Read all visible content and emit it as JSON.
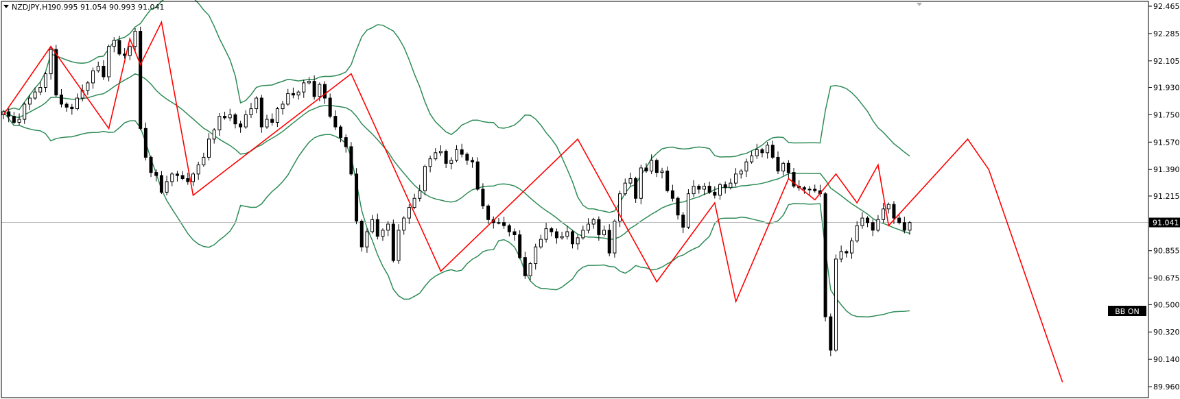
{
  "header": {
    "symbol_label": "NZDJPY,H1",
    "ohlc_values": "90.995 91.054 90.993 91.041"
  },
  "bb_button": {
    "label": "BB ON"
  },
  "price_axis": {
    "labels": [
      "92.465",
      "92.285",
      "92.105",
      "91.930",
      "91.750",
      "91.570",
      "91.390",
      "91.215",
      "91.041",
      "90.855",
      "90.675",
      "90.500",
      "90.320",
      "90.140",
      "89.960"
    ],
    "current_price_label": "91.041"
  },
  "colors": {
    "background": "#ffffff",
    "frame": "#000000",
    "candle": "#000000",
    "bollinger": "#2e8b57",
    "zigzag": "#ff0000",
    "price_line": "#c0c0c0",
    "price_tag_bg": "#000000",
    "price_tag_text": "#ffffff"
  },
  "chart_data": {
    "type": "candlestick",
    "symbol": "NZDJPY",
    "timeframe": "H1",
    "ylim": [
      89.96,
      92.465
    ],
    "current_price": 91.041,
    "closes": [
      91.77,
      91.74,
      91.7,
      91.72,
      91.82,
      91.86,
      91.9,
      91.93,
      92.02,
      92.18,
      91.88,
      91.82,
      91.8,
      91.79,
      91.86,
      91.91,
      91.96,
      92.04,
      92.07,
      92.0,
      92.2,
      92.24,
      92.15,
      92.14,
      92.2,
      92.3,
      91.66,
      91.47,
      91.37,
      91.35,
      91.24,
      91.31,
      91.36,
      91.35,
      91.33,
      91.31,
      91.36,
      91.42,
      91.47,
      91.59,
      91.65,
      91.74,
      91.73,
      91.75,
      91.69,
      91.67,
      91.75,
      91.79,
      91.86,
      91.67,
      91.72,
      91.7,
      91.79,
      91.82,
      91.89,
      91.88,
      91.9,
      91.96,
      91.97,
      91.87,
      91.95,
      91.86,
      91.74,
      91.67,
      91.6,
      91.54,
      91.36,
      91.05,
      90.88,
      90.98,
      91.06,
      90.95,
      90.99,
      91.03,
      90.79,
      90.99,
      91.07,
      91.14,
      91.2,
      91.25,
      91.41,
      91.46,
      91.5,
      91.51,
      91.43,
      91.45,
      91.52,
      91.49,
      91.45,
      91.44,
      91.26,
      91.15,
      91.06,
      91.04,
      91.04,
      91.02,
      90.98,
      90.96,
      90.81,
      90.69,
      90.77,
      90.88,
      90.93,
      91.0,
      90.98,
      90.94,
      90.95,
      90.98,
      90.9,
      90.94,
      90.99,
      91.03,
      91.06,
      90.96,
      90.99,
      90.84,
      91.05,
      91.23,
      91.3,
      91.33,
      91.2,
      91.4,
      91.38,
      91.45,
      91.37,
      91.38,
      91.25,
      91.2,
      91.09,
      91.01,
      91.23,
      91.28,
      91.26,
      91.28,
      91.24,
      91.22,
      91.29,
      91.27,
      91.3,
      91.36,
      91.38,
      91.44,
      91.48,
      91.52,
      91.5,
      91.55,
      91.47,
      91.38,
      91.43,
      91.37,
      91.28,
      91.27,
      91.26,
      91.26,
      91.25,
      91.23,
      90.42,
      90.2,
      90.8,
      90.85,
      90.84,
      90.92,
      91.02,
      91.07,
      91.04,
      90.99,
      91.06,
      91.13,
      91.16,
      91.07,
      91.04,
      90.99,
      91.04
    ],
    "zigzag": [
      [
        0,
        91.75
      ],
      [
        9,
        92.2
      ],
      [
        20,
        91.66
      ],
      [
        24,
        92.25
      ],
      [
        26,
        92.08
      ],
      [
        30,
        92.36
      ],
      [
        36,
        91.22
      ],
      [
        66,
        92.02
      ],
      [
        83,
        90.72
      ],
      [
        109,
        91.59
      ],
      [
        124,
        90.65
      ],
      [
        135,
        91.17
      ],
      [
        139,
        90.52
      ],
      [
        149,
        91.33
      ],
      [
        154,
        91.19
      ],
      [
        158,
        91.36
      ],
      [
        162,
        91.17
      ],
      [
        166,
        91.42
      ],
      [
        168,
        91.02
      ],
      [
        183,
        91.59
      ],
      [
        187,
        91.39
      ],
      [
        201,
        89.99
      ]
    ]
  }
}
